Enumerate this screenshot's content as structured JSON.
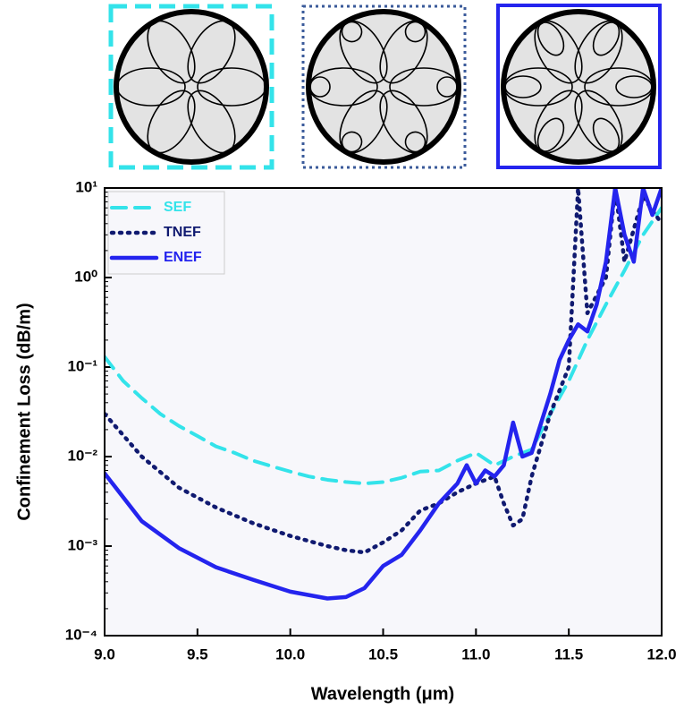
{
  "chart_data": {
    "type": "line",
    "xlabel": "Wavelength (μm)",
    "ylabel": "Confinement Loss (dB/m)",
    "log_y": true,
    "xlim": [
      9,
      12
    ],
    "ylim": [
      0.0001,
      10
    ],
    "xticks": [
      {
        "value": 9,
        "label": "9.0"
      },
      9.5,
      {
        "value": 10,
        "label": "10.0"
      },
      10.5,
      {
        "value": 11,
        "label": "11.0"
      },
      11.5,
      {
        "value": 12,
        "label": "12.0"
      }
    ],
    "yticks": [
      {
        "value": 0.0001,
        "label": "10⁻⁴"
      },
      {
        "value": 0.001,
        "label": "10⁻³"
      },
      {
        "value": 0.01,
        "label": "10⁻²"
      },
      {
        "value": 0.1,
        "label": "10⁻¹"
      },
      {
        "value": 1,
        "label": "10⁰"
      },
      {
        "value": 10,
        "label": "10¹"
      }
    ],
    "legend": "top-left",
    "series": [
      {
        "name": "SEF",
        "color": "#33e3ea",
        "dash": "dashed",
        "x": [
          9,
          9.1,
          9.2,
          9.3,
          9.4,
          9.5,
          9.6,
          9.7,
          9.8,
          9.9,
          10,
          10.1,
          10.2,
          10.3,
          10.4,
          10.5,
          10.6,
          10.7,
          10.8,
          10.9,
          11,
          11.1,
          11.2,
          11.3,
          11.4,
          11.5,
          11.6,
          11.7,
          11.8,
          11.9,
          12
        ],
        "values": [
          0.13,
          0.07,
          0.045,
          0.03,
          0.022,
          0.017,
          0.013,
          0.011,
          0.009,
          0.0078,
          0.0068,
          0.006,
          0.0055,
          0.0052,
          0.005,
          0.0052,
          0.0058,
          0.0068,
          0.007,
          0.009,
          0.011,
          0.008,
          0.01,
          0.012,
          0.03,
          0.07,
          0.2,
          0.5,
          1.2,
          3,
          6
        ]
      },
      {
        "name": "TNEF",
        "color": "#101a70",
        "dash": "dotted",
        "x": [
          9,
          9.2,
          9.4,
          9.6,
          9.8,
          10,
          10.2,
          10.3,
          10.4,
          10.5,
          10.6,
          10.7,
          10.8,
          10.9,
          11,
          11.1,
          11.15,
          11.2,
          11.25,
          11.3,
          11.4,
          11.5,
          11.55,
          11.6,
          11.7,
          11.75,
          11.8,
          11.9,
          12
        ],
        "values": [
          0.03,
          0.01,
          0.0045,
          0.0027,
          0.0018,
          0.0013,
          0.001,
          0.0009,
          0.00085,
          0.0011,
          0.0015,
          0.0025,
          0.003,
          0.004,
          0.005,
          0.006,
          0.003,
          0.0017,
          0.002,
          0.006,
          0.03,
          0.1,
          10,
          0.4,
          1,
          10,
          1.5,
          8,
          4
        ]
      },
      {
        "name": "ENEF",
        "color": "#2424ee",
        "dash": "solid",
        "x": [
          9,
          9.2,
          9.4,
          9.6,
          9.8,
          10,
          10.2,
          10.3,
          10.4,
          10.5,
          10.6,
          10.7,
          10.8,
          10.9,
          10.95,
          11,
          11.05,
          11.1,
          11.15,
          11.2,
          11.25,
          11.3,
          11.4,
          11.45,
          11.5,
          11.55,
          11.6,
          11.65,
          11.7,
          11.75,
          11.8,
          11.85,
          11.9,
          11.95,
          12
        ],
        "values": [
          0.0065,
          0.0019,
          0.00095,
          0.00058,
          0.00042,
          0.00031,
          0.00026,
          0.00027,
          0.00034,
          0.0006,
          0.0008,
          0.0015,
          0.003,
          0.005,
          0.008,
          0.005,
          0.007,
          0.006,
          0.008,
          0.024,
          0.01,
          0.011,
          0.05,
          0.12,
          0.2,
          0.3,
          0.25,
          0.5,
          1.5,
          10,
          3,
          1.5,
          10,
          5,
          10
        ]
      }
    ]
  }
}
